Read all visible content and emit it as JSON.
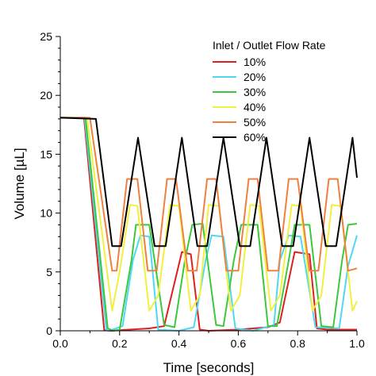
{
  "chart_data": {
    "type": "line",
    "xlabel": "Time [seconds]",
    "ylabel": "Volume [µL]",
    "xlim": [
      0,
      1.0
    ],
    "ylim": [
      0,
      25
    ],
    "x_ticks": [
      0.0,
      0.2,
      0.4,
      0.6,
      0.8,
      1.0
    ],
    "x_tick_labels": [
      "0.0",
      "0.2",
      "0.4",
      "0.6",
      "0.8",
      "1.0"
    ],
    "y_ticks": [
      0,
      5,
      10,
      15,
      20,
      25
    ],
    "y_tick_labels": [
      "0",
      "5",
      "10",
      "15",
      "20",
      "25"
    ],
    "grid": false,
    "legend": {
      "title": "Inlet / Outlet Flow Rate",
      "position": "top-right"
    },
    "series": [
      {
        "name": "10%",
        "color": "#dd2020",
        "points": [
          [
            0.0,
            18.1
          ],
          [
            0.08,
            18.1
          ],
          [
            0.148,
            0.05
          ],
          [
            0.17,
            0.0
          ],
          [
            0.2,
            0.05
          ],
          [
            0.3,
            0.2
          ],
          [
            0.35,
            0.4
          ],
          [
            0.41,
            6.7
          ],
          [
            0.44,
            6.5
          ],
          [
            0.47,
            0.1
          ],
          [
            0.5,
            0.0
          ],
          [
            0.6,
            0.1
          ],
          [
            0.7,
            0.3
          ],
          [
            0.74,
            0.7
          ],
          [
            0.79,
            6.7
          ],
          [
            0.84,
            6.5
          ],
          [
            0.865,
            0.2
          ],
          [
            0.9,
            0.1
          ],
          [
            1.0,
            0.1
          ]
        ]
      },
      {
        "name": "20%",
        "color": "#4fd8ef",
        "points": [
          [
            0.0,
            18.1
          ],
          [
            0.082,
            18.1
          ],
          [
            0.155,
            0.1
          ],
          [
            0.165,
            0.0
          ],
          [
            0.21,
            0.4
          ],
          [
            0.245,
            6.0
          ],
          [
            0.27,
            8.1
          ],
          [
            0.3,
            8.0
          ],
          [
            0.33,
            0.1
          ],
          [
            0.4,
            0.0
          ],
          [
            0.45,
            0.3
          ],
          [
            0.49,
            6.0
          ],
          [
            0.51,
            8.1
          ],
          [
            0.55,
            8.0
          ],
          [
            0.59,
            0.2
          ],
          [
            0.65,
            0.0
          ],
          [
            0.72,
            0.5
          ],
          [
            0.74,
            6.0
          ],
          [
            0.77,
            8.1
          ],
          [
            0.81,
            8.0
          ],
          [
            0.86,
            0.3
          ],
          [
            0.94,
            0.2
          ],
          [
            0.97,
            5.5
          ],
          [
            1.0,
            8.1
          ]
        ]
      },
      {
        "name": "30%",
        "color": "#3cc83c",
        "points": [
          [
            0.0,
            18.1
          ],
          [
            0.085,
            18.1
          ],
          [
            0.16,
            0.2
          ],
          [
            0.18,
            0.0
          ],
          [
            0.2,
            0.1
          ],
          [
            0.24,
            6.0
          ],
          [
            0.255,
            9.0
          ],
          [
            0.3,
            9.0
          ],
          [
            0.35,
            0.5
          ],
          [
            0.385,
            0.3
          ],
          [
            0.42,
            6.0
          ],
          [
            0.445,
            9.0
          ],
          [
            0.48,
            9.1
          ],
          [
            0.525,
            0.5
          ],
          [
            0.55,
            0.4
          ],
          [
            0.585,
            6.0
          ],
          [
            0.61,
            9.0
          ],
          [
            0.665,
            9.0
          ],
          [
            0.7,
            0.4
          ],
          [
            0.73,
            0.4
          ],
          [
            0.77,
            6.0
          ],
          [
            0.79,
            9.0
          ],
          [
            0.84,
            9.0
          ],
          [
            0.88,
            0.4
          ],
          [
            0.92,
            0.3
          ],
          [
            0.95,
            6.0
          ],
          [
            0.97,
            9.0
          ],
          [
            1.0,
            9.1
          ]
        ]
      },
      {
        "name": "40%",
        "color": "#f0f040",
        "points": [
          [
            0.0,
            18.1
          ],
          [
            0.09,
            18.1
          ],
          [
            0.175,
            1.7
          ],
          [
            0.2,
            5.0
          ],
          [
            0.235,
            10.7
          ],
          [
            0.26,
            10.6
          ],
          [
            0.3,
            1.7
          ],
          [
            0.33,
            3.0
          ],
          [
            0.37,
            10.7
          ],
          [
            0.4,
            10.6
          ],
          [
            0.44,
            1.7
          ],
          [
            0.47,
            3.0
          ],
          [
            0.5,
            10.7
          ],
          [
            0.535,
            10.6
          ],
          [
            0.575,
            1.7
          ],
          [
            0.605,
            3.0
          ],
          [
            0.64,
            10.7
          ],
          [
            0.67,
            10.6
          ],
          [
            0.71,
            1.7
          ],
          [
            0.74,
            3.0
          ],
          [
            0.78,
            10.7
          ],
          [
            0.81,
            10.6
          ],
          [
            0.85,
            1.7
          ],
          [
            0.88,
            3.0
          ],
          [
            0.915,
            10.7
          ],
          [
            0.945,
            10.6
          ],
          [
            0.985,
            1.7
          ],
          [
            1.0,
            2.5
          ]
        ]
      },
      {
        "name": "50%",
        "color": "#f08040",
        "points": [
          [
            0.0,
            18.1
          ],
          [
            0.1,
            18.1
          ],
          [
            0.175,
            5.1
          ],
          [
            0.19,
            5.1
          ],
          [
            0.225,
            12.9
          ],
          [
            0.26,
            12.9
          ],
          [
            0.295,
            5.1
          ],
          [
            0.325,
            5.1
          ],
          [
            0.36,
            12.9
          ],
          [
            0.39,
            12.9
          ],
          [
            0.43,
            5.1
          ],
          [
            0.46,
            5.1
          ],
          [
            0.495,
            12.9
          ],
          [
            0.525,
            12.9
          ],
          [
            0.56,
            5.1
          ],
          [
            0.6,
            5.1
          ],
          [
            0.635,
            12.9
          ],
          [
            0.665,
            12.9
          ],
          [
            0.7,
            5.1
          ],
          [
            0.735,
            5.1
          ],
          [
            0.77,
            12.9
          ],
          [
            0.8,
            12.9
          ],
          [
            0.84,
            5.1
          ],
          [
            0.87,
            5.1
          ],
          [
            0.905,
            12.9
          ],
          [
            0.935,
            12.9
          ],
          [
            0.97,
            5.1
          ],
          [
            1.0,
            5.3
          ]
        ]
      },
      {
        "name": "60%",
        "color": "#000000",
        "points": [
          [
            0.0,
            18.1
          ],
          [
            0.12,
            18.0
          ],
          [
            0.175,
            7.2
          ],
          [
            0.205,
            7.2
          ],
          [
            0.262,
            16.4
          ],
          [
            0.318,
            7.2
          ],
          [
            0.355,
            7.2
          ],
          [
            0.41,
            16.4
          ],
          [
            0.462,
            7.2
          ],
          [
            0.495,
            7.2
          ],
          [
            0.55,
            16.4
          ],
          [
            0.605,
            7.2
          ],
          [
            0.64,
            7.2
          ],
          [
            0.695,
            16.4
          ],
          [
            0.748,
            7.2
          ],
          [
            0.785,
            7.2
          ],
          [
            0.84,
            16.4
          ],
          [
            0.895,
            7.2
          ],
          [
            0.93,
            7.2
          ],
          [
            0.985,
            16.4
          ],
          [
            1.0,
            13.0
          ]
        ]
      }
    ]
  }
}
